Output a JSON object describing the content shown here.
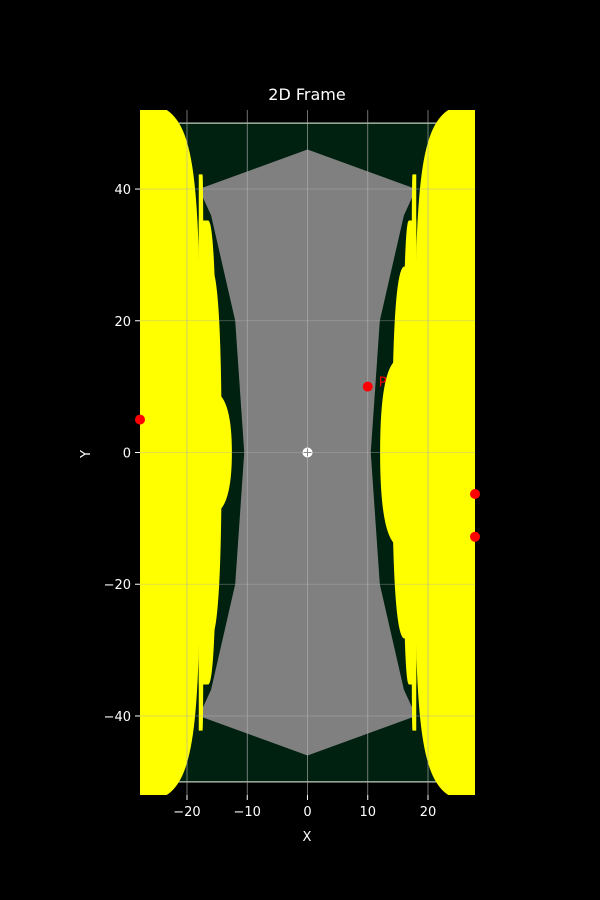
{
  "chart_data": {
    "type": "scatter",
    "title": "2D Frame",
    "xlabel": "X",
    "ylabel": "Y",
    "xlim": [
      -27.8,
      27.8
    ],
    "ylim": [
      -52,
      52
    ],
    "xticks": [
      -20,
      -10,
      0,
      10,
      20
    ],
    "yticks": [
      -40,
      -20,
      0,
      20,
      40
    ],
    "xtick_labels": [
      "−20",
      "−10",
      "0",
      "10",
      "20"
    ],
    "ytick_labels": [
      "−40",
      "−20",
      "0",
      "20",
      "40"
    ],
    "grid": true,
    "frame": {
      "x_range": [
        -27.8,
        27.8
      ],
      "y_range": [
        -50,
        50
      ],
      "color": "#002010",
      "edge_color": "#a0b0a0"
    },
    "region": {
      "color": "#808080",
      "outline": [
        [
          0,
          46
        ],
        [
          -18,
          40
        ],
        [
          -16,
          36
        ],
        [
          -12,
          20
        ],
        [
          -10.5,
          0
        ],
        [
          -12,
          -20
        ],
        [
          -16,
          -36
        ],
        [
          -18,
          -40
        ],
        [
          0,
          -46
        ],
        [
          18,
          -40
        ],
        [
          16,
          -36
        ],
        [
          12,
          -20
        ],
        [
          10.5,
          0
        ],
        [
          12,
          20
        ],
        [
          16,
          36
        ],
        [
          18,
          40
        ]
      ]
    },
    "yellow_bands": {
      "color": "#ffff00",
      "left": [
        {
          "x_inner": -17.5,
          "y_half": 42
        },
        {
          "x_inner": -15.3,
          "y_half": 35
        },
        {
          "x_inner": -14.5,
          "y_half": 28
        },
        {
          "x_inner": -12.8,
          "y_half": 9
        }
      ],
      "right": [
        {
          "x_inner": 17.5,
          "y_half": 42
        },
        {
          "x_inner": 16.1,
          "y_half": 35
        },
        {
          "x_inner": 14.3,
          "y_half": 28
        },
        {
          "x_inner": 12.3,
          "y_half": 14
        }
      ],
      "outer_arc": {
        "x_edge": 27.8,
        "x_apex": 17.8,
        "y_half": 53
      }
    },
    "points": [
      {
        "name": "origin",
        "x": 0,
        "y": 0,
        "color": "#ffffff",
        "label": ""
      },
      {
        "name": "P",
        "x": 10,
        "y": 10,
        "color": "#ff0000",
        "label": "P"
      },
      {
        "name": "edge-1",
        "x": 27.8,
        "y": -6.3,
        "color": "#ff0000",
        "label": ""
      },
      {
        "name": "edge-2",
        "x": 27.8,
        "y": -12.8,
        "color": "#ff0000",
        "label": ""
      },
      {
        "name": "edge-3",
        "x": -27.8,
        "y": 5,
        "color": "#ff0000",
        "label": ""
      }
    ]
  }
}
